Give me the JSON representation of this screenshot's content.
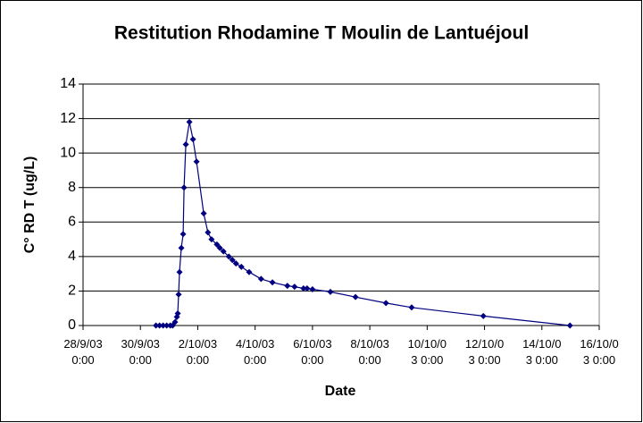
{
  "chart_data": {
    "type": "line",
    "title": "Restitution Rhodamine T Moulin de Lantuéjoul",
    "x_label": "Date",
    "y_label": "C° RD T (ug/L)",
    "x": [
      "2003-09-30T13:00",
      "2003-09-30T16:00",
      "2003-09-30T19:00",
      "2003-09-30T22:00",
      "2003-10-01T01:00",
      "2003-10-01T03:00",
      "2003-10-01T05:00",
      "2003-10-01T06:30",
      "2003-10-01T07:15",
      "2003-10-01T08:00",
      "2003-10-01T08:45",
      "2003-10-01T10:15",
      "2003-10-01T11:45",
      "2003-10-01T12:30",
      "2003-10-01T14:00",
      "2003-10-01T17:00",
      "2003-10-01T20:00",
      "2003-10-01T23:00",
      "2003-10-02T05:00",
      "2003-10-02T08:30",
      "2003-10-02T11:30",
      "2003-10-02T16:00",
      "2003-10-02T18:30",
      "2003-10-02T21:30",
      "2003-10-03T02:00",
      "2003-10-03T05:00",
      "2003-10-03T08:00",
      "2003-10-03T12:30",
      "2003-10-03T19:00",
      "2003-10-04T05:00",
      "2003-10-04T14:30",
      "2003-10-05T03:00",
      "2003-10-05T09:00",
      "2003-10-05T16:30",
      "2003-10-05T19:30",
      "2003-10-06T00:00",
      "2003-10-06T15:00",
      "2003-10-07T12:00",
      "2003-10-08T13:30",
      "2003-10-09T11:00",
      "2003-10-11T23:00",
      "2003-10-14T23:30"
    ],
    "series": [
      {
        "name": "C° RD T",
        "color": "#000080",
        "values": [
          0,
          0,
          0,
          0,
          0,
          0,
          0.2,
          0.5,
          0.7,
          1.8,
          3.1,
          4.5,
          5.3,
          8.0,
          10.5,
          11.8,
          10.8,
          9.5,
          6.5,
          5.4,
          5.0,
          4.7,
          4.5,
          4.3,
          4.0,
          3.8,
          3.6,
          3.4,
          3.1,
          2.7,
          2.5,
          2.3,
          2.25,
          2.15,
          2.15,
          2.1,
          1.95,
          1.65,
          1.3,
          1.05,
          0.55,
          0
        ]
      }
    ],
    "xlim": [
      "2003-09-28T00:00",
      "2003-10-16T00:00"
    ],
    "xticks": [
      {
        "value": "2003-09-28T00:00",
        "label": "28/9/03 0:00"
      },
      {
        "value": "2003-09-30T00:00",
        "label": "30/9/03 0:00"
      },
      {
        "value": "2003-10-02T00:00",
        "label": "2/10/03 0:00"
      },
      {
        "value": "2003-10-04T00:00",
        "label": "4/10/03 0:00"
      },
      {
        "value": "2003-10-06T00:00",
        "label": "6/10/03 0:00"
      },
      {
        "value": "2003-10-08T00:00",
        "label": "8/10/03 0:00"
      },
      {
        "value": "2003-10-10T00:00",
        "label": "10/10/03 0:00"
      },
      {
        "value": "2003-10-12T00:00",
        "label": "12/10/03 0:00"
      },
      {
        "value": "2003-10-14T00:00",
        "label": "14/10/03 0:00"
      },
      {
        "value": "2003-10-16T00:00",
        "label": "16/10/03 0:00"
      }
    ],
    "ylim": [
      0,
      14
    ],
    "yticks": [
      0,
      2,
      4,
      6,
      8,
      10,
      12,
      14
    ],
    "grid": true
  }
}
